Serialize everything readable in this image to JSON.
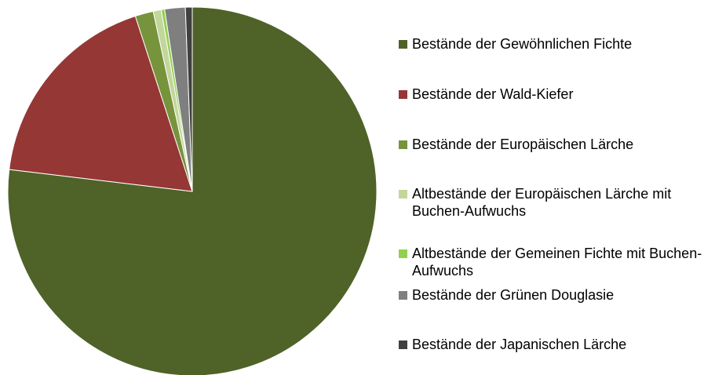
{
  "chart_data": {
    "type": "pie",
    "categories": [
      "Bestände der Gewöhnlichen Fichte",
      "Bestände der Wald-Kiefer",
      "Bestände der Europäischen Lärche",
      "Altbestände der Europäischen Lärche mit Buchen-Aufwuchs",
      "Altbestände der Gemeinen Fichte mit Buchen-Aufwuchs",
      "Bestände der Grünen Douglasie",
      "Bestände der Japanischen Lärche"
    ],
    "values": [
      76.9,
      18.1,
      1.6,
      0.7,
      0.3,
      1.8,
      0.6
    ],
    "colors": [
      "#4f6228",
      "#953735",
      "#77933c",
      "#c3d69b",
      "#92d050",
      "#7f7f7f",
      "#404040"
    ],
    "legend": "right"
  }
}
